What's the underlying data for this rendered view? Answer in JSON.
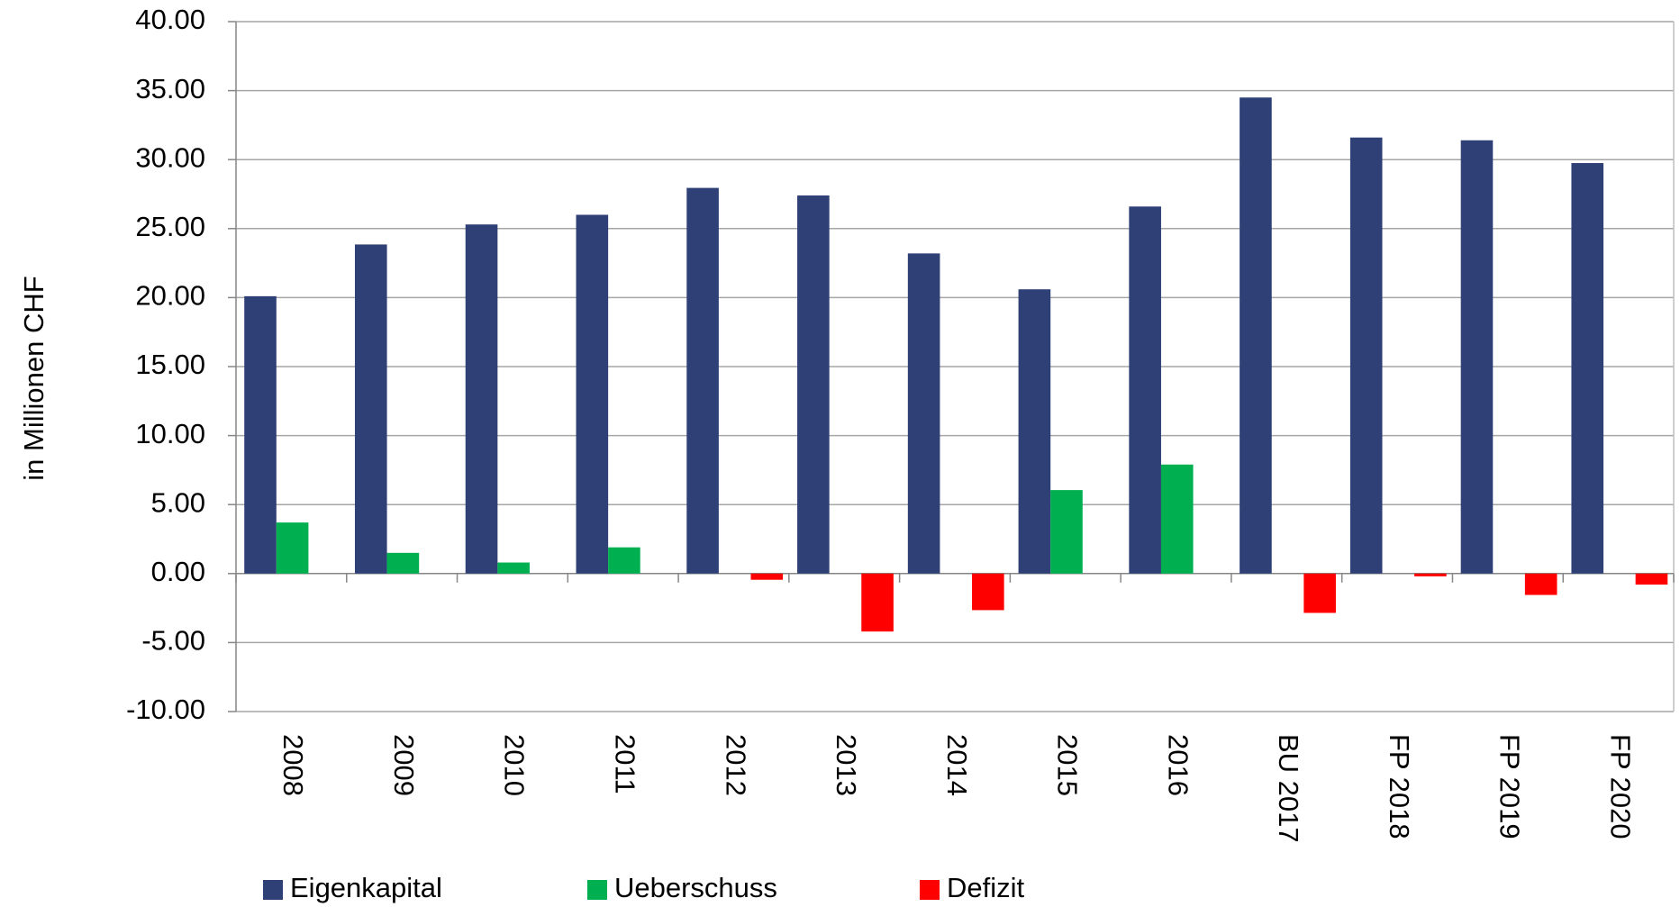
{
  "chart_data": {
    "type": "bar",
    "y_label": "in Millionen CHF",
    "categories": [
      "2008",
      "2009",
      "2010",
      "2011",
      "2012",
      "2013",
      "2014",
      "2015",
      "2016",
      "BU 2017",
      "FP 2018",
      "FP 2019",
      "FP 2020"
    ],
    "series": [
      {
        "name": "Eigenkapital",
        "color": "#2e4076",
        "values": [
          20.1,
          23.85,
          25.3,
          26.0,
          27.95,
          27.4,
          23.2,
          20.6,
          26.6,
          34.5,
          31.6,
          31.4,
          29.75
        ]
      },
      {
        "name": "Ueberschuss",
        "color": "#00b050",
        "values": [
          3.7,
          1.5,
          0.8,
          1.9,
          null,
          null,
          null,
          6.05,
          7.9,
          null,
          null,
          null,
          null
        ]
      },
      {
        "name": "Defizit",
        "color": "#ff0000",
        "values": [
          null,
          null,
          null,
          null,
          -0.45,
          -4.2,
          -2.65,
          null,
          null,
          -2.85,
          -0.2,
          -1.55,
          -0.8
        ]
      }
    ],
    "ylim": [
      -10,
      40
    ],
    "yticks": [
      {
        "value": -10,
        "label": "-10.00"
      },
      {
        "value": -5,
        "label": "-5.00"
      },
      {
        "value": 0,
        "label": "0.00"
      },
      {
        "value": 5,
        "label": "5.00"
      },
      {
        "value": 10,
        "label": "10.00"
      },
      {
        "value": 15,
        "label": "15.00"
      },
      {
        "value": 20,
        "label": "20.00"
      },
      {
        "value": 25,
        "label": "25.00"
      },
      {
        "value": 30,
        "label": "30.00"
      },
      {
        "value": 35,
        "label": "35.00"
      },
      {
        "value": 40,
        "label": "40.00"
      }
    ],
    "grid": true,
    "legend": "bottom"
  }
}
